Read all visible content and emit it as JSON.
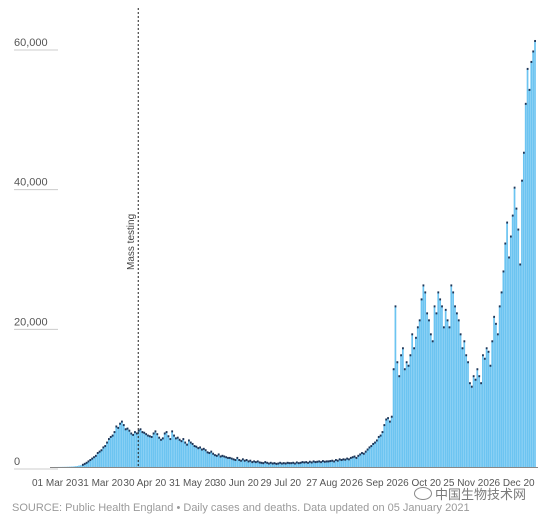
{
  "chart_data": {
    "type": "bar",
    "title": "",
    "xlabel": "",
    "ylabel": "",
    "ylim": [
      0,
      62000
    ],
    "yticks": [
      0,
      20000,
      40000,
      60000
    ],
    "ytick_labels": [
      "0",
      "20,000",
      "40,000",
      "60,000"
    ],
    "grid": false,
    "legend": "none",
    "x_start": "2020-03-01",
    "x_tick_labels": [
      "01 Mar 20",
      "31 Mar 20",
      "30 Apr 20",
      "31 May 20",
      "30 Jun 20",
      "29 Jul 20",
      "27 Aug 20",
      "26 Sep 20",
      "26 Oct 20",
      "25 Nov 20",
      "26 Dec 20"
    ],
    "annotation": {
      "label": "Mass testing",
      "date": "2020-04-15"
    },
    "series": [
      {
        "color": "#6cc4f1",
        "marker_color": "#1d3557",
        "values": [
          5,
          5,
          10,
          15,
          20,
          25,
          30,
          40,
          50,
          60,
          70,
          110,
          140,
          210,
          260,
          310,
          450,
          600,
          800,
          1000,
          1200,
          1400,
          1600,
          2000,
          2200,
          2400,
          2800,
          3000,
          3500,
          4000,
          4300,
          4500,
          5000,
          5800,
          5600,
          6200,
          6500,
          6000,
          5400,
          5500,
          5200,
          4800,
          4600,
          5000,
          4800,
          5200,
          5400,
          5000,
          4900,
          4700,
          4500,
          4400,
          4300,
          4800,
          5100,
          4700,
          4200,
          3900,
          4100,
          4800,
          5000,
          4400,
          4000,
          5100,
          4500,
          4100,
          4200,
          3900,
          3700,
          4000,
          3500,
          3200,
          3800,
          3500,
          3300,
          3000,
          2900,
          2700,
          2800,
          2500,
          2600,
          2400,
          2100,
          2000,
          2200,
          1900,
          1700,
          1600,
          1800,
          1500,
          1600,
          1500,
          1400,
          1300,
          1300,
          1200,
          1100,
          1000,
          1300,
          1000,
          900,
          1100,
          900,
          1000,
          800,
          900,
          700,
          800,
          700,
          800,
          650,
          600,
          550,
          700,
          600,
          500,
          600,
          500,
          550,
          450,
          500,
          600,
          500,
          550,
          500,
          600,
          550,
          550,
          600,
          500,
          650,
          550,
          600,
          700,
          650,
          700,
          600,
          750,
          650,
          800,
          700,
          750,
          800,
          700,
          850,
          750,
          800,
          800,
          850,
          900,
          800,
          1000,
          900,
          1100,
          1000,
          1100,
          1050,
          1200,
          1100,
          1300,
          1400,
          1500,
          1300,
          1600,
          1800,
          2000,
          1900,
          2200,
          2500,
          2800,
          3000,
          3300,
          3500,
          3800,
          4300,
          4500,
          5000,
          6000,
          6800,
          7000,
          6500,
          7200,
          14000,
          23000,
          15000,
          13000,
          16000,
          17000,
          14000,
          15000,
          14500,
          16000,
          19000,
          17000,
          18500,
          20000,
          21000,
          24000,
          26000,
          25000,
          22000,
          21000,
          19000,
          18000,
          23000,
          22000,
          25000,
          24000,
          23000,
          20000,
          22500,
          21000,
          20000,
          26000,
          25000,
          23000,
          22000,
          21000,
          19000,
          17000,
          18000,
          16000,
          15000,
          12000,
          11500,
          13000,
          12500,
          14000,
          13000,
          12000,
          16000,
          15500,
          17000,
          16500,
          14500,
          18000,
          21500,
          20500,
          19000,
          23000,
          25000,
          28000,
          32000,
          35000,
          30000,
          33000,
          36000,
          40000,
          37000,
          34000,
          29000,
          41000,
          45000,
          52000,
          57000,
          54000,
          58000,
          59500,
          61000
        ]
      }
    ]
  },
  "source_text": "SOURCE: Public Health England • Daily cases and deaths. Data updated on 05 January 2021",
  "watermark_text": "中国生物技术网",
  "watermark_icon": "wechat-logo-icon"
}
